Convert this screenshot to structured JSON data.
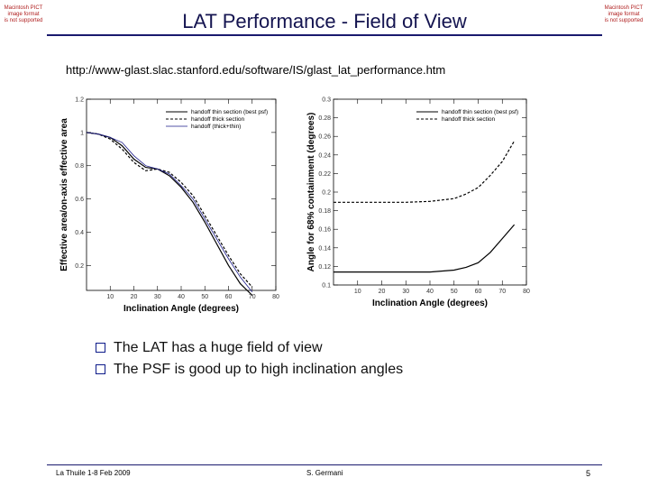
{
  "placeholder_left": [
    "Macintosh PICT",
    "image format",
    "is not supported"
  ],
  "placeholder_right": [
    "Macintosh PICT",
    "image format",
    "is not supported"
  ],
  "title": "LAT Performance - Field of View",
  "url": "http://www-glast.slac.stanford.edu/software/IS/glast_lat_performance.htm",
  "chart_data": [
    {
      "type": "line",
      "xlabel": "Inclination Angle (degrees)",
      "ylabel": "Effective area/on-axis effective area",
      "xlim": [
        0,
        80
      ],
      "ylim": [
        0.05,
        1.2
      ],
      "xticks": [
        10,
        20,
        30,
        40,
        50,
        60,
        70,
        80
      ],
      "yticks": [
        0.2,
        0.4,
        0.6,
        0.8,
        1.0,
        1.2
      ],
      "ytick_labels": [
        "0.2",
        "0.4",
        "0.6",
        "0.8",
        "1",
        "1.2"
      ],
      "legend_position": "top-right",
      "series": [
        {
          "name": "handoff thin section (best psf)",
          "dash": "solid",
          "x": [
            0,
            5,
            10,
            15,
            20,
            25,
            30,
            35,
            40,
            45,
            50,
            55,
            60,
            65,
            70
          ],
          "y": [
            1.0,
            0.99,
            0.97,
            0.92,
            0.84,
            0.79,
            0.78,
            0.74,
            0.67,
            0.58,
            0.46,
            0.33,
            0.2,
            0.09,
            0.02
          ]
        },
        {
          "name": "handoff thick section",
          "dash": "dashed",
          "x": [
            0,
            5,
            10,
            15,
            20,
            25,
            30,
            35,
            40,
            45,
            50,
            55,
            60,
            65,
            70
          ],
          "y": [
            1.0,
            0.99,
            0.96,
            0.9,
            0.82,
            0.77,
            0.78,
            0.76,
            0.7,
            0.62,
            0.5,
            0.38,
            0.26,
            0.15,
            0.07
          ]
        },
        {
          "name": "handoff (thick+thin)",
          "dash": "solid-thin",
          "x": [
            0,
            5,
            10,
            15,
            20,
            25,
            30,
            35,
            40,
            45,
            50,
            55,
            60,
            65,
            70
          ],
          "y": [
            1.0,
            0.99,
            0.97,
            0.94,
            0.86,
            0.8,
            0.78,
            0.75,
            0.68,
            0.6,
            0.48,
            0.36,
            0.24,
            0.13,
            0.04
          ]
        }
      ]
    },
    {
      "type": "line",
      "xlabel": "Inclination Angle (degrees)",
      "ylabel": "Angle for 68% containment (degrees)",
      "xlim": [
        0,
        80
      ],
      "ylim": [
        0.1,
        0.3
      ],
      "xticks": [
        10,
        20,
        30,
        40,
        50,
        60,
        70,
        80
      ],
      "yticks": [
        0.1,
        0.12,
        0.14,
        0.16,
        0.18,
        0.2,
        0.22,
        0.24,
        0.26,
        0.28,
        0.3
      ],
      "legend_position": "top-right",
      "series": [
        {
          "name": "handoff thin section (best psf)",
          "dash": "solid",
          "x": [
            0,
            10,
            20,
            30,
            40,
            50,
            55,
            60,
            65,
            70,
            75
          ],
          "y": [
            0.114,
            0.114,
            0.114,
            0.114,
            0.114,
            0.116,
            0.119,
            0.124,
            0.135,
            0.15,
            0.165
          ]
        },
        {
          "name": "handoff thick section",
          "dash": "dashed",
          "x": [
            0,
            10,
            20,
            30,
            40,
            50,
            55,
            60,
            65,
            70,
            75
          ],
          "y": [
            0.189,
            0.189,
            0.189,
            0.189,
            0.19,
            0.193,
            0.198,
            0.205,
            0.218,
            0.233,
            0.255
          ]
        }
      ]
    }
  ],
  "bullets": [
    "The LAT has a huge field of view",
    "The PSF is good up to high inclination angles"
  ],
  "footer": {
    "left": "La Thuile 1-8 Feb 2009",
    "center": "S. Germani",
    "page": "5"
  }
}
